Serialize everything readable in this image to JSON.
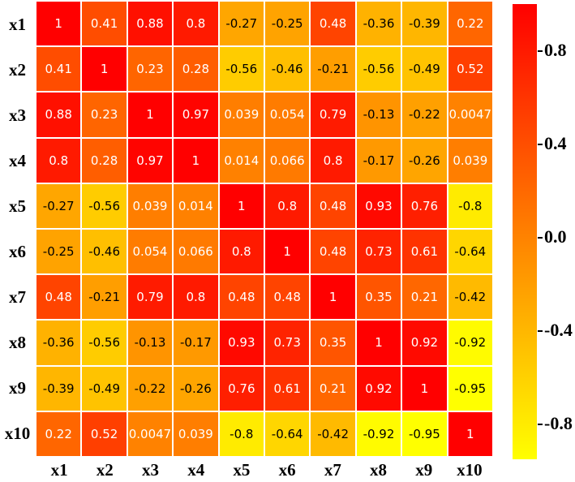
{
  "chart_data": {
    "type": "heatmap",
    "title": "",
    "row_labels": [
      "x1",
      "x2",
      "x3",
      "x4",
      "x5",
      "x6",
      "x7",
      "x8",
      "x9",
      "x10"
    ],
    "col_labels": [
      "x1",
      "x2",
      "x3",
      "x4",
      "x5",
      "x6",
      "x7",
      "x8",
      "x9",
      "x10"
    ],
    "matrix": [
      [
        "1",
        "0.41",
        "0.88",
        "0.8",
        "-0.27",
        "-0.25",
        "0.48",
        "-0.36",
        "-0.39",
        "0.22"
      ],
      [
        "0.41",
        "1",
        "0.23",
        "0.28",
        "-0.56",
        "-0.46",
        "-0.21",
        "-0.56",
        "-0.49",
        "0.52"
      ],
      [
        "0.88",
        "0.23",
        "1",
        "0.97",
        "0.039",
        "0.054",
        "0.79",
        "-0.13",
        "-0.22",
        "0.0047"
      ],
      [
        "0.8",
        "0.28",
        "0.97",
        "1",
        "0.014",
        "0.066",
        "0.8",
        "-0.17",
        "-0.26",
        "0.039"
      ],
      [
        "-0.27",
        "-0.56",
        "0.039",
        "0.014",
        "1",
        "0.8",
        "0.48",
        "0.93",
        "0.76",
        "-0.8"
      ],
      [
        "-0.25",
        "-0.46",
        "0.054",
        "0.066",
        "0.8",
        "1",
        "0.48",
        "0.73",
        "0.61",
        "-0.64"
      ],
      [
        "0.48",
        "-0.21",
        "0.79",
        "0.8",
        "0.48",
        "0.48",
        "1",
        "0.35",
        "0.21",
        "-0.42"
      ],
      [
        "-0.36",
        "-0.56",
        "-0.13",
        "-0.17",
        "0.93",
        "0.73",
        "0.35",
        "1",
        "0.92",
        "-0.92"
      ],
      [
        "-0.39",
        "-0.49",
        "-0.22",
        "-0.26",
        "0.76",
        "0.61",
        "0.21",
        "0.92",
        "1",
        "-0.95"
      ],
      [
        "0.22",
        "0.52",
        "0.0047",
        "0.039",
        "-0.8",
        "-0.64",
        "-0.42",
        "-0.92",
        "-0.95",
        "1"
      ]
    ],
    "colormap": {
      "name": "autumn_r",
      "vmin": -0.95,
      "vmax": 1,
      "max_color": "#ff0000",
      "min_color": "#ffff00",
      "grid_color": "#ffffff",
      "positive_text_color": "#ffffff",
      "negative_text_color": "#000000"
    },
    "colorbar": {
      "position": "right",
      "tick_labels": [
        "0.8",
        "0.4",
        "0.0",
        "-0.4",
        "-0.8"
      ],
      "tick_values": [
        0.8,
        0.4,
        0.0,
        -0.4,
        -0.8
      ]
    },
    "grid": true,
    "legend": false
  }
}
